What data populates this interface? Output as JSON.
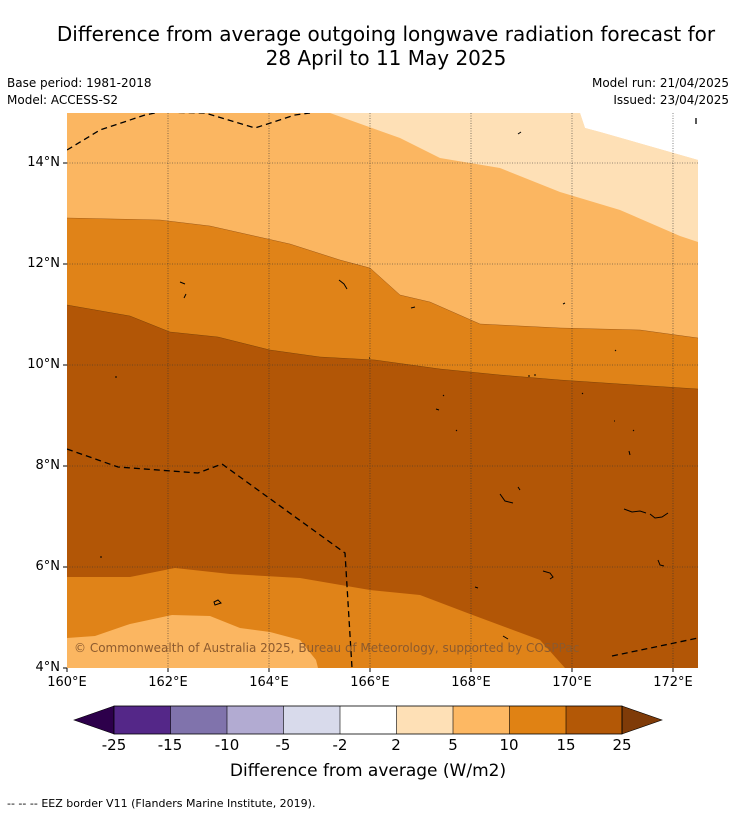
{
  "header": {
    "title_line1": "Difference from average outgoing longwave radiation forecast for",
    "title_line2": "28 April to 11 May 2025",
    "base_period": "Base period: 1981-2018",
    "model": "Model: ACCESS-S2",
    "model_run": "Model run: 21/04/2025",
    "issued": "Issued: 23/04/2025"
  },
  "map": {
    "lat_ticks": [
      "14°N",
      "12°N",
      "10°N",
      "8°N",
      "6°N",
      "4°N"
    ],
    "lon_ticks": [
      "160°E",
      "162°E",
      "164°E",
      "166°E",
      "168°E",
      "170°E",
      "172°E"
    ],
    "copyright": "© Commonwealth of Australia 2025, Bureau of Meteorology, supported by COSPPac",
    "fill_colors": {
      "b10_15": "#b25606",
      "b5_10": "#e08318",
      "b2_5": "#fbb661",
      "b_neg2_2": "#fee0b6"
    }
  },
  "colorbar": {
    "labels": [
      "-25",
      "-15",
      "-10",
      "-5",
      "-2",
      "2",
      "5",
      "10",
      "15",
      "25"
    ],
    "colors": [
      "#2d004b",
      "#542788",
      "#8073ac",
      "#b2abd2",
      "#d8daeb",
      "#ffffff",
      "#fee0b6",
      "#fdb863",
      "#e08214",
      "#b35806",
      "#7f3b08"
    ],
    "title": "Difference from average (W/m2)"
  },
  "footer": {
    "eez_symbol": "--  --  --",
    "eez_text": "EEZ border V11 (Flanders Marine Institute, 2019)."
  }
}
